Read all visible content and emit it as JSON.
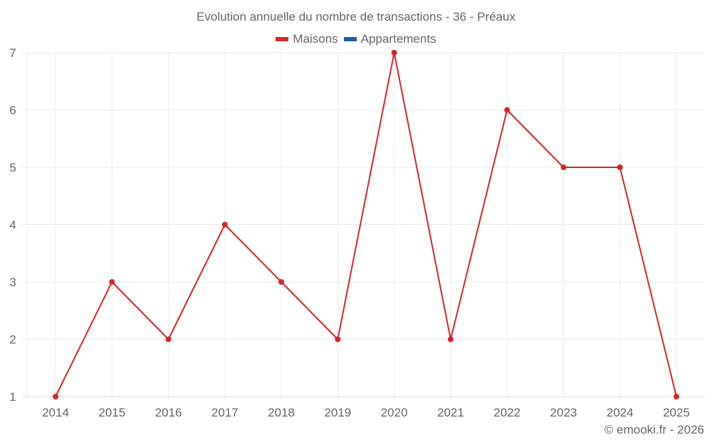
{
  "title": "Evolution annuelle du nombre de transactions - 36 - Préaux",
  "legend": [
    {
      "label": "Maisons",
      "color": "#d62728"
    },
    {
      "label": "Appartements",
      "color": "#1f5f9b"
    }
  ],
  "credit": "© emooki.fr - 2026",
  "chart_data": {
    "type": "line",
    "title": "Evolution annuelle du nombre de transactions - 36 - Préaux",
    "xlabel": "",
    "ylabel": "",
    "categories": [
      "2014",
      "2015",
      "2016",
      "2017",
      "2018",
      "2019",
      "2020",
      "2021",
      "2022",
      "2023",
      "2024",
      "2025"
    ],
    "series": [
      {
        "name": "Maisons",
        "color": "#d62728",
        "values": [
          1,
          3,
          2,
          4,
          3,
          2,
          7,
          2,
          6,
          5,
          5,
          1
        ]
      },
      {
        "name": "Appartements",
        "color": "#1f5f9b",
        "values": []
      }
    ],
    "ylim": [
      1,
      7
    ],
    "yticks": [
      1,
      2,
      3,
      4,
      5,
      6,
      7
    ],
    "grid": true,
    "legend_position": "top"
  }
}
